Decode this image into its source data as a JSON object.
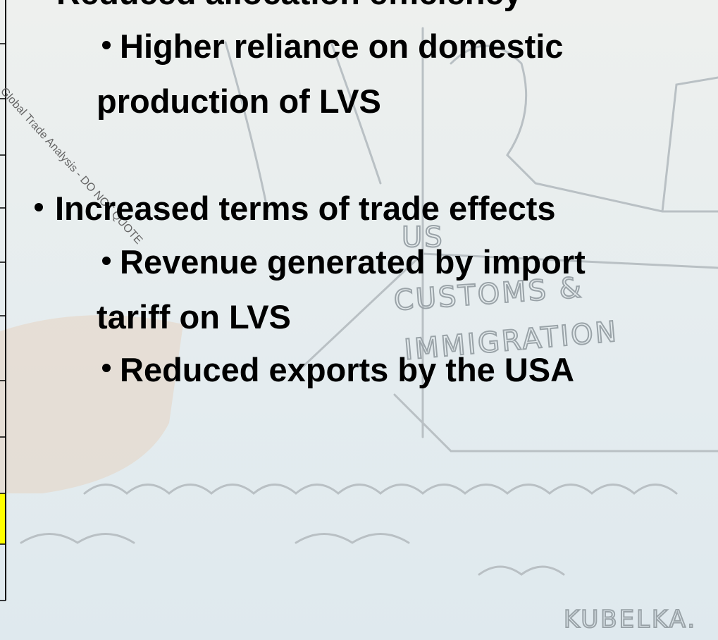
{
  "slide": {
    "heading": "Reduced allocation efficiency",
    "lines": [
      "Higher reliance on domestic",
      "production of LVS",
      "Increased terms of trade effects",
      "Revenue generated by import",
      "tariff on LVS",
      "Reduced exports by the USA"
    ]
  },
  "cartoon": {
    "sign_1": "US",
    "sign_2": "CUSTOMS &",
    "sign_3": "IMMIGRATION",
    "signature": "KUBELKA."
  },
  "watermark": "Global Trade Analysis - DO NOT QUOTE"
}
